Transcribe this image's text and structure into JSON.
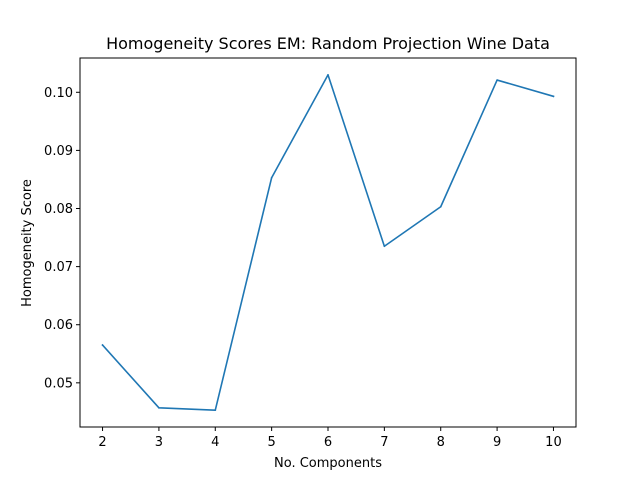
{
  "chart_data": {
    "type": "line",
    "title": "Homogeneity Scores EM: Random Projection Wine Data",
    "xlabel": "No. Components",
    "ylabel": "Homogeneity Score",
    "x": [
      2,
      3,
      4,
      5,
      6,
      7,
      8,
      9,
      10
    ],
    "series": [
      {
        "values": [
          0.0565,
          0.0457,
          0.0453,
          0.0853,
          0.103,
          0.0735,
          0.0803,
          0.1021,
          0.0993
        ],
        "color": "#1f77b4"
      }
    ],
    "xlim": [
      1.6,
      10.4
    ],
    "ylim": [
      0.0424,
      0.1059
    ],
    "xticks": [
      "2",
      "3",
      "4",
      "5",
      "6",
      "7",
      "8",
      "9",
      "10"
    ],
    "yticks": [
      "0.05",
      "0.06",
      "0.07",
      "0.08",
      "0.09",
      "0.10"
    ],
    "ytick_values": [
      0.05,
      0.06,
      0.07,
      0.08,
      0.09,
      0.1
    ],
    "grid": false,
    "legend": "none"
  }
}
